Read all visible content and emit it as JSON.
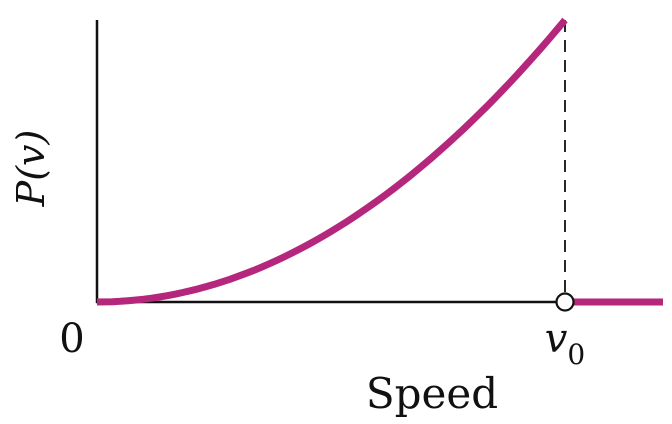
{
  "chart_data": {
    "type": "line",
    "title": "",
    "xlabel": "Speed",
    "ylabel": "P(v)",
    "x_tick_labels": [
      {
        "x": 0,
        "label": "0",
        "italic": false
      },
      {
        "x": 1,
        "label": "v",
        "subscript": "0",
        "italic": true
      }
    ],
    "xlim": [
      0,
      1.2
    ],
    "ylim": [
      0,
      1
    ],
    "grid": false,
    "legend": "none",
    "series": [
      {
        "color": "#B5277C",
        "points": [
          [
            0.0,
            0.0
          ],
          [
            0.1,
            0.01
          ],
          [
            0.2,
            0.04
          ],
          [
            0.3,
            0.09
          ],
          [
            0.4,
            0.16
          ],
          [
            0.5,
            0.25
          ],
          [
            0.6,
            0.36
          ],
          [
            0.7,
            0.49
          ],
          [
            0.8,
            0.64
          ],
          [
            0.9,
            0.81
          ],
          [
            1.0,
            1.0
          ]
        ]
      },
      {
        "color": "#B5277C",
        "points": [
          [
            1.0,
            0.0
          ],
          [
            1.2,
            0.0
          ]
        ]
      }
    ],
    "annotations": {
      "dashed_vertical_at_x": 1.0,
      "open_circle_at": [
        1.0,
        0.0
      ]
    }
  }
}
